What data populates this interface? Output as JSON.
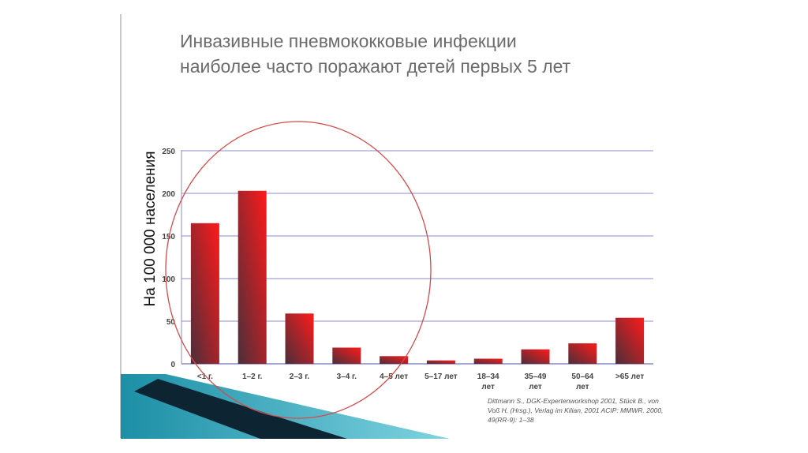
{
  "slide": {
    "title_lines": [
      "Инвазивные пневмококковые инфекции",
      "наиболее часто поражают детей первых 5 лет"
    ],
    "citation_lines": [
      "Dittmann S., DGK-Expertenworkshop 2001, Stück B., von",
      "Voß H. (Hrsg.), Verlag im Kilian, 2001 ACIP: MMWR. 2000,",
      "49(RR-9): 1–38"
    ]
  },
  "colors": {
    "bar_dark": "#4a2f3a",
    "bar_bright": "#ff1a1a",
    "gridline": "#8c8cc8",
    "circle": "#d44a4a",
    "accent_teal": "#2aa3b8",
    "ribbon_dark": "#0d2433"
  },
  "chart_data": {
    "type": "bar",
    "title": "",
    "ylabel": "На 100 000 населения",
    "xlabel": "",
    "ylim": [
      0,
      250
    ],
    "yticks": [
      0,
      50,
      100,
      150,
      200,
      250
    ],
    "grid": true,
    "categories": [
      [
        "<1 г."
      ],
      [
        "1–2 г."
      ],
      [
        "2–3 г."
      ],
      [
        "3–4 г."
      ],
      [
        "4–5 лет"
      ],
      [
        "5–17 лет"
      ],
      [
        "18–34",
        "лет"
      ],
      [
        "35–49",
        "лет"
      ],
      [
        "50–64",
        "лет"
      ],
      [
        ">65 лет"
      ]
    ],
    "values": [
      165,
      203,
      59,
      19,
      9,
      4,
      6,
      17,
      24,
      54
    ]
  }
}
